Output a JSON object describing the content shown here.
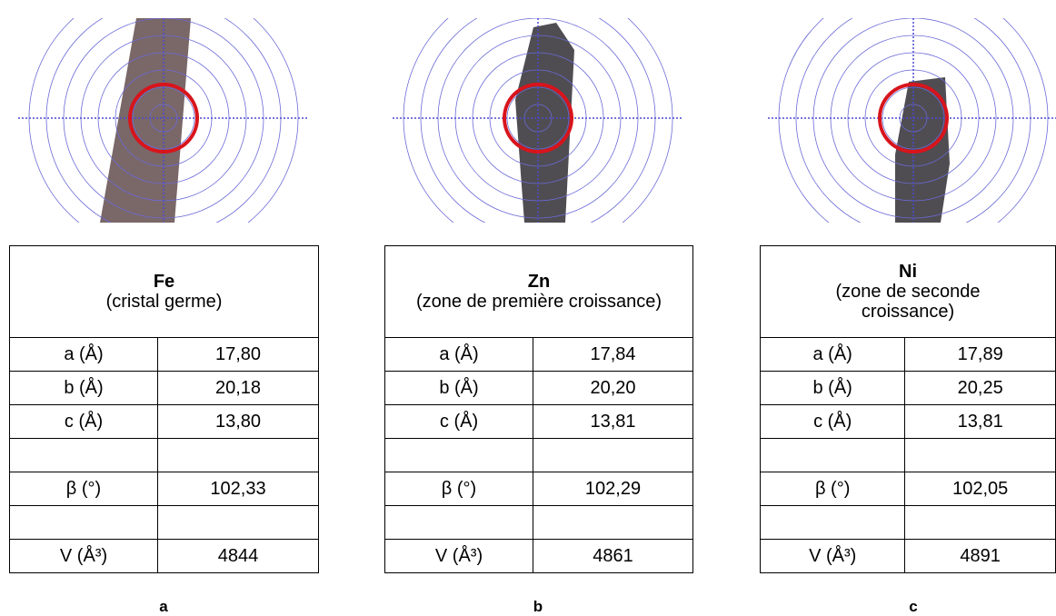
{
  "panels": [
    {
      "element": "Fe",
      "subtitle": "(cristal germe)",
      "rows": [
        [
          "a (Å)",
          "17,80"
        ],
        [
          "b (Å)",
          "20,18"
        ],
        [
          "c (Å)",
          "13,80"
        ],
        null,
        [
          "β (°)",
          "102,33"
        ],
        null,
        [
          "V (Å³)",
          "4844"
        ]
      ],
      "letter": "a"
    },
    {
      "element": "Zn",
      "subtitle": "(zone de première croissance)",
      "rows": [
        [
          "a (Å)",
          "17,84"
        ],
        [
          "b (Å)",
          "20,20"
        ],
        [
          "c (Å)",
          "13,81"
        ],
        null,
        [
          "β (°)",
          "102,29"
        ],
        null,
        [
          "V (Å³)",
          "4861"
        ]
      ],
      "letter": "b"
    },
    {
      "element": "Ni",
      "subtitle": "(zone de seconde croissance)",
      "rows": [
        [
          "a (Å)",
          "17,89"
        ],
        [
          "b (Å)",
          "20,25"
        ],
        [
          "c (Å)",
          "13,81"
        ],
        null,
        [
          "β (°)",
          "102,05"
        ],
        null,
        [
          "V (Å³)",
          "4891"
        ]
      ],
      "letter": "c"
    }
  ]
}
